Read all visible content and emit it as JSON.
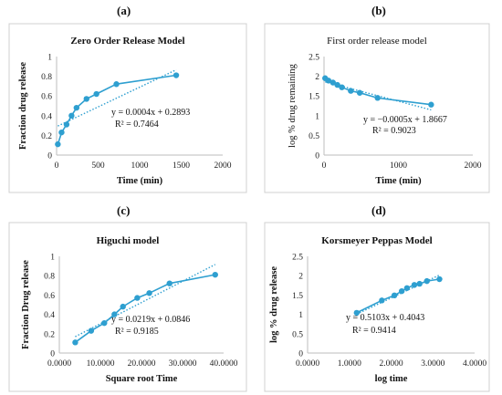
{
  "chart_data": [
    {
      "panel_label": "(a)",
      "type": "scatter",
      "title": "Zero Order Release Model",
      "xlabel": "Time (min)",
      "ylabel": "Fraction drug release",
      "xlim": [
        0,
        2000
      ],
      "ylim": [
        0,
        1
      ],
      "xticks": [
        0,
        500,
        1000,
        1500,
        2000
      ],
      "yticks": [
        0,
        0.2,
        0.4,
        0.6,
        0.8,
        1
      ],
      "xtick_labels": [
        "0",
        "500",
        "1000",
        "1500",
        "2000"
      ],
      "ytick_labels": [
        "0",
        "0.2",
        "0.4",
        "0.6",
        "0.8",
        "1"
      ],
      "x": [
        15,
        60,
        120,
        180,
        240,
        360,
        480,
        720,
        1440
      ],
      "y": [
        0.11,
        0.23,
        0.31,
        0.4,
        0.48,
        0.57,
        0.62,
        0.72,
        0.81
      ],
      "trendline": {
        "slope": 0.0004,
        "intercept": 0.2893,
        "range": [
          15,
          1440
        ]
      },
      "equation": "y = 0.0004x + 0.2893",
      "r2": "R² = 0.7464",
      "grid": false,
      "color": "#2e9fd0"
    },
    {
      "panel_label": "(b)",
      "type": "scatter",
      "title": "First order release model",
      "xlabel": "Time (min)",
      "ylabel": "log % drug remaining",
      "xlim": [
        0,
        2000
      ],
      "ylim": [
        0,
        2.5
      ],
      "xticks": [
        0,
        1000,
        2000
      ],
      "yticks": [
        0,
        0.5,
        1,
        1.5,
        2,
        2.5
      ],
      "xtick_labels": [
        "0",
        "1000",
        "2000"
      ],
      "ytick_labels": [
        "0",
        "0.5",
        "1",
        "1.5",
        "2",
        "2.5"
      ],
      "x": [
        15,
        60,
        120,
        180,
        240,
        360,
        480,
        720,
        1440
      ],
      "y": [
        1.95,
        1.89,
        1.84,
        1.78,
        1.72,
        1.63,
        1.58,
        1.45,
        1.28
      ],
      "trendline": {
        "slope": -0.0005,
        "intercept": 1.8667,
        "range": [
          15,
          1440
        ]
      },
      "equation": "y = −0.0005x + 1.8667",
      "r2": "R² = 0.9023",
      "grid": false,
      "color": "#2e9fd0"
    },
    {
      "panel_label": "(c)",
      "type": "scatter",
      "title": "Higuchi model",
      "xlabel": "Square root Time",
      "ylabel": "Fraction Drug release",
      "xlim": [
        0,
        40
      ],
      "ylim": [
        0,
        1
      ],
      "xticks": [
        0,
        10,
        20,
        30,
        40
      ],
      "yticks": [
        0,
        0.2,
        0.4,
        0.6,
        0.8,
        1
      ],
      "xtick_labels": [
        "0.0000",
        "10.0000",
        "20.0000",
        "30.0000",
        "40.0000"
      ],
      "ytick_labels": [
        "0",
        "0.2",
        "0.4",
        "0.6",
        "0.8",
        "1"
      ],
      "x": [
        3.873,
        7.746,
        10.954,
        13.416,
        15.492,
        18.974,
        21.909,
        26.833,
        37.947
      ],
      "y": [
        0.11,
        0.23,
        0.31,
        0.4,
        0.48,
        0.57,
        0.62,
        0.72,
        0.81
      ],
      "trendline": {
        "slope": 0.0219,
        "intercept": 0.0846,
        "range": [
          3.873,
          37.947
        ]
      },
      "equation": "y = 0.0219x + 0.0846",
      "r2": "R² = 0.9185",
      "grid": false,
      "color": "#2e9fd0"
    },
    {
      "panel_label": "(d)",
      "type": "scatter",
      "title": "Korsmeyer Peppas Model",
      "xlabel": "log time",
      "ylabel": "log % drug release",
      "xlim": [
        0,
        4
      ],
      "ylim": [
        0,
        2.5
      ],
      "xticks": [
        0,
        1,
        2,
        3,
        4
      ],
      "yticks": [
        0,
        0.5,
        1,
        1.5,
        2,
        2.5
      ],
      "xtick_labels": [
        "0.0000",
        "1.0000",
        "2.0000",
        "3.0000",
        "4.0000"
      ],
      "ytick_labels": [
        "0",
        "0.5",
        "1",
        "1.5",
        "2",
        "2.5"
      ],
      "x": [
        1.176,
        1.778,
        2.079,
        2.255,
        2.38,
        2.556,
        2.681,
        2.857,
        3.158
      ],
      "y": [
        1.04,
        1.36,
        1.49,
        1.6,
        1.68,
        1.76,
        1.79,
        1.86,
        1.91
      ],
      "trendline": {
        "slope": 0.5103,
        "intercept": 0.4043,
        "range": [
          1.176,
          3.158
        ]
      },
      "equation": "y = 0.5103x + 0.4043",
      "r2": "R² = 0.9414",
      "grid": false,
      "color": "#2e9fd0"
    }
  ]
}
